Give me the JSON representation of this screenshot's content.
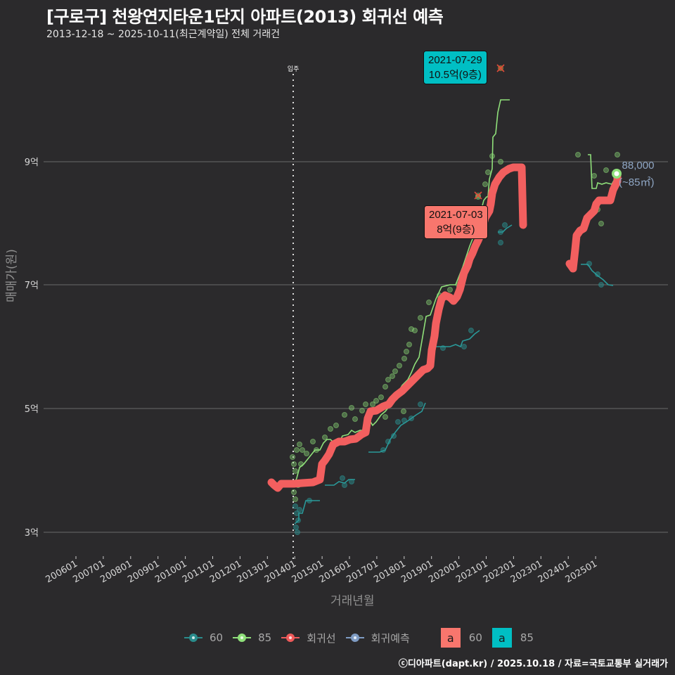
{
  "header": {
    "title": "[구로구] 천왕연지타운1단지 아파트(2013) 회귀선 예측",
    "subtitle": "2013-12-18 ~ 2025-10-11(최근계약일) 전체 거래건"
  },
  "axes": {
    "y_title": "매매가(원)",
    "x_title": "거래년월",
    "y_ticks": [
      "9억",
      "7억",
      "5억",
      "3억"
    ],
    "x_ticks": [
      "200601",
      "200701",
      "200801",
      "200901",
      "201001",
      "201101",
      "201201",
      "201301",
      "201401",
      "201501",
      "201601",
      "201701",
      "201801",
      "201901",
      "202001",
      "202101",
      "202201",
      "202301",
      "202401",
      "202501"
    ],
    "move_in_label": "입주"
  },
  "callouts": {
    "max": {
      "date": "2021-07-29",
      "value": "10.5억(9층)",
      "color": "#00bfc4"
    },
    "recent": {
      "date": "2021-07-03",
      "value": "8억(9층)",
      "color": "#f8766d"
    }
  },
  "end_label": {
    "value": "88,000",
    "area": "(~85㎡)"
  },
  "legend": {
    "items": [
      {
        "label": "60",
        "color": "#2a8c8c"
      },
      {
        "label": "85",
        "color": "#8fe07a"
      },
      {
        "label": "회귀선",
        "color": "#ef5a5a"
      },
      {
        "label": "회귀예측",
        "color": "#7f9cc4"
      }
    ],
    "boxes": [
      {
        "glyph": "a",
        "label": "60",
        "color": "#f8766d"
      },
      {
        "glyph": "a",
        "label": "85",
        "color": "#00bfc4"
      }
    ]
  },
  "footer": "ⓒ디아파트(dapt.kr) / 2025.10.18 / 자료=국토교통부 실거래가",
  "colors": {
    "background": "#2b2a2c",
    "grid": "#6a6a6a",
    "area60": "#2a8c8c",
    "area85": "#8fe07a",
    "regression": "#f25f5f",
    "prediction": "#7f9cc4"
  },
  "chart_data": {
    "type": "line",
    "title": "[구로구] 천왕연지타운1단지 아파트(2013) 회귀선 예측",
    "subtitle": "2013-12-18 ~ 2025-10-11(최근계약일) 전체 거래건",
    "xlabel": "거래년월",
    "ylabel": "매매가(원)",
    "ylim": [
      2.7,
      10.5
    ],
    "y_unit": "억",
    "x_range": [
      "2006-01",
      "2025-10"
    ],
    "grid": true,
    "legend_position": "bottom",
    "annotations": [
      {
        "x": "2013-12",
        "label": "입주",
        "type": "vline-dotted"
      },
      {
        "x": "2021-07-29",
        "y": 10.5,
        "label": "2021-07-29 10.5억(9층)",
        "marker": "x"
      },
      {
        "x": "2021-07-03",
        "y": 8.0,
        "label": "2021-07-03 8억(9층)",
        "marker": "x"
      },
      {
        "x": "2025-10",
        "y": 8.8,
        "label": "88,000 (~85㎡)"
      }
    ],
    "series": [
      {
        "name": "85 (moving line)",
        "x": [
          "2013-12",
          "2014-03",
          "2014-09",
          "2015-06",
          "2016-01",
          "2016-06",
          "2017-01",
          "2017-06",
          "2018-01",
          "2018-06",
          "2018-10",
          "2019-01",
          "2019-06",
          "2020-01",
          "2020-06",
          "2021-01",
          "2021-06",
          "2021-09",
          "2021-12",
          "2024-11",
          "2025-01",
          "2025-06",
          "2025-09"
        ],
        "values": [
          3.85,
          3.95,
          4.45,
          4.65,
          4.65,
          4.9,
          4.95,
          5.25,
          5.65,
          6.1,
          6.5,
          6.6,
          7.0,
          7.0,
          7.4,
          8.2,
          8.45,
          9.4,
          10.0,
          9.1,
          8.6,
          8.6,
          8.75
        ]
      },
      {
        "name": "60 (moving line)",
        "x": [
          "2013-12",
          "2014-06",
          "2015-03",
          "2016-06",
          "2017-01",
          "2017-06",
          "2018-06",
          "2019-01",
          "2019-06",
          "2020-06",
          "2021-10",
          "2022-06",
          "2024-06",
          "2025-01",
          "2025-03"
        ],
        "values": [
          3.2,
          3.5,
          3.77,
          3.85,
          4.28,
          4.5,
          4.9,
          5.1,
          6.0,
          6.25,
          7.9,
          7.95,
          7.3,
          7.1,
          7.0
        ]
      },
      {
        "name": "회귀선",
        "x": [
          "2013-06",
          "2013-12",
          "2014-06",
          "2015-01",
          "2015-06",
          "2016-01",
          "2016-06",
          "2017-01",
          "2017-06",
          "2018-01",
          "2018-06",
          "2019-01",
          "2019-06",
          "2020-01",
          "2020-06",
          "2021-01",
          "2021-06",
          "2021-12",
          "2022-06",
          "2022-08",
          "2024-01",
          "2024-06",
          "2025-01",
          "2025-06",
          "2025-10"
        ],
        "values": [
          3.75,
          3.75,
          3.78,
          3.85,
          4.35,
          4.45,
          4.55,
          4.9,
          5.05,
          5.25,
          5.4,
          5.7,
          6.8,
          6.85,
          7.15,
          7.7,
          8.6,
          8.95,
          8.95,
          8.0,
          7.3,
          7.85,
          8.2,
          8.35,
          8.8
        ]
      }
    ]
  }
}
